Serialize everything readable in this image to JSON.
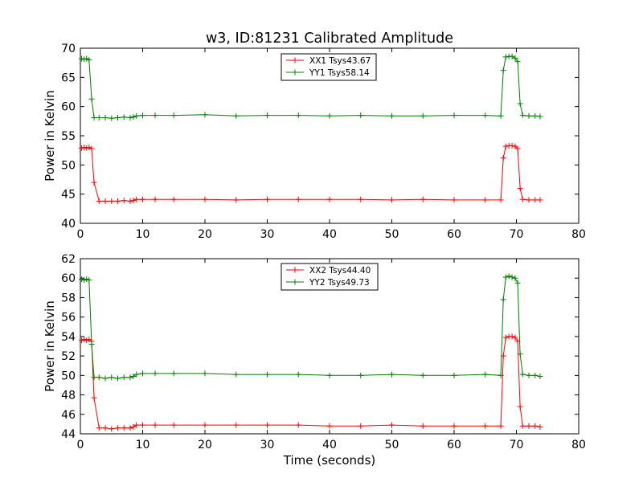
{
  "figure": {
    "title": "w3, ID:81231 Calibrated Amplitude",
    "xlabel": "Time (seconds)"
  },
  "chart_data": [
    {
      "type": "line",
      "title": "w3, ID:81231 Calibrated Amplitude",
      "xlabel": "",
      "ylabel": "Power in Kelvin",
      "xlim": [
        0,
        80
      ],
      "ylim": [
        40,
        70
      ],
      "xticks": [
        "0",
        "10",
        "20",
        "30",
        "40",
        "50",
        "60",
        "70",
        "80"
      ],
      "yticks": [
        "40",
        "45",
        "50",
        "55",
        "60",
        "65",
        "70"
      ],
      "grid": false,
      "legend_position": "top-center",
      "series": [
        {
          "name": "XX1 Tsys43.67",
          "color": "#ff0000",
          "x": [
            0.2,
            0.6,
            1.0,
            1.4,
            1.8,
            2.2,
            3,
            4,
            5,
            6,
            7,
            8,
            8.5,
            9,
            10,
            12,
            15,
            20,
            25,
            30,
            35,
            40,
            45,
            50,
            55,
            60,
            65,
            67.5,
            67.9,
            68.3,
            68.8,
            69.3,
            69.8,
            70.2,
            70.6,
            71.0,
            72,
            73,
            73.8
          ],
          "values": [
            52.9,
            53.0,
            52.9,
            53.0,
            52.8,
            47.0,
            43.8,
            43.8,
            43.8,
            43.8,
            43.9,
            43.8,
            43.9,
            44.1,
            44.1,
            44.1,
            44.1,
            44.1,
            44.0,
            44.1,
            44.1,
            44.1,
            44.1,
            44.0,
            44.1,
            44.0,
            44.0,
            44.0,
            51.2,
            53.2,
            53.3,
            53.3,
            53.2,
            52.8,
            46.0,
            44.1,
            44.0,
            44.0,
            44.0
          ]
        },
        {
          "name": "YY1 Tsys58.14",
          "color": "#007f00",
          "x": [
            0.2,
            0.6,
            1.0,
            1.4,
            1.8,
            2.2,
            3,
            4,
            5,
            6,
            7,
            8,
            8.5,
            9,
            10,
            12,
            15,
            20,
            25,
            30,
            35,
            40,
            45,
            50,
            55,
            60,
            65,
            67.5,
            67.9,
            68.3,
            68.8,
            69.3,
            69.8,
            70.2,
            70.6,
            71.0,
            72,
            73,
            73.8
          ],
          "values": [
            68.2,
            68.1,
            68.2,
            68.0,
            61.3,
            58.1,
            58.1,
            58.1,
            58.0,
            58.1,
            58.2,
            58.1,
            58.2,
            58.4,
            58.5,
            58.5,
            58.5,
            58.6,
            58.4,
            58.5,
            58.5,
            58.4,
            58.5,
            58.4,
            58.4,
            58.5,
            58.5,
            58.4,
            66.2,
            68.5,
            68.6,
            68.6,
            68.3,
            67.7,
            60.5,
            58.5,
            58.4,
            58.4,
            58.3
          ]
        }
      ]
    },
    {
      "type": "line",
      "title": "",
      "xlabel": "Time (seconds)",
      "ylabel": "Power in Kelvin",
      "xlim": [
        0,
        80
      ],
      "ylim": [
        44,
        62
      ],
      "xticks": [
        "0",
        "10",
        "20",
        "30",
        "40",
        "50",
        "60",
        "70",
        "80"
      ],
      "yticks": [
        "44",
        "46",
        "48",
        "50",
        "52",
        "54",
        "56",
        "58",
        "60",
        "62"
      ],
      "grid": false,
      "legend_position": "top-center",
      "series": [
        {
          "name": "XX2 Tsys44.40",
          "color": "#ff0000",
          "x": [
            0.2,
            0.6,
            1.0,
            1.4,
            1.8,
            2.2,
            3,
            4,
            5,
            6,
            7,
            8,
            8.5,
            9,
            10,
            12,
            15,
            20,
            25,
            30,
            35,
            40,
            45,
            50,
            55,
            60,
            65,
            67.5,
            67.9,
            68.3,
            68.8,
            69.3,
            69.8,
            70.2,
            70.6,
            71.0,
            72,
            73,
            73.8
          ],
          "values": [
            53.6,
            53.7,
            53.6,
            53.7,
            53.5,
            47.7,
            44.6,
            44.6,
            44.5,
            44.6,
            44.6,
            44.6,
            44.7,
            44.9,
            44.9,
            44.9,
            44.9,
            44.9,
            44.9,
            44.9,
            44.9,
            44.8,
            44.8,
            44.9,
            44.8,
            44.8,
            44.8,
            44.8,
            52.0,
            53.9,
            54.0,
            54.0,
            53.9,
            53.5,
            46.8,
            44.8,
            44.8,
            44.8,
            44.7
          ]
        },
        {
          "name": "YY2 Tsys49.73",
          "color": "#007f00",
          "x": [
            0.2,
            0.6,
            1.0,
            1.4,
            1.8,
            2.2,
            3,
            4,
            5,
            6,
            7,
            8,
            8.5,
            9,
            10,
            12,
            15,
            20,
            25,
            30,
            35,
            40,
            45,
            50,
            55,
            60,
            65,
            67.5,
            67.9,
            68.3,
            68.8,
            69.3,
            69.8,
            70.2,
            70.6,
            71.0,
            72,
            73,
            73.8
          ],
          "values": [
            59.9,
            59.8,
            59.9,
            59.8,
            53.2,
            49.8,
            49.8,
            49.7,
            49.8,
            49.7,
            49.8,
            49.8,
            49.9,
            50.1,
            50.2,
            50.2,
            50.2,
            50.2,
            50.1,
            50.1,
            50.1,
            50.0,
            50.0,
            50.1,
            50.0,
            50.0,
            50.1,
            50.0,
            57.8,
            60.1,
            60.2,
            60.1,
            60.0,
            59.5,
            52.2,
            50.1,
            50.0,
            50.0,
            49.9
          ]
        }
      ]
    }
  ]
}
